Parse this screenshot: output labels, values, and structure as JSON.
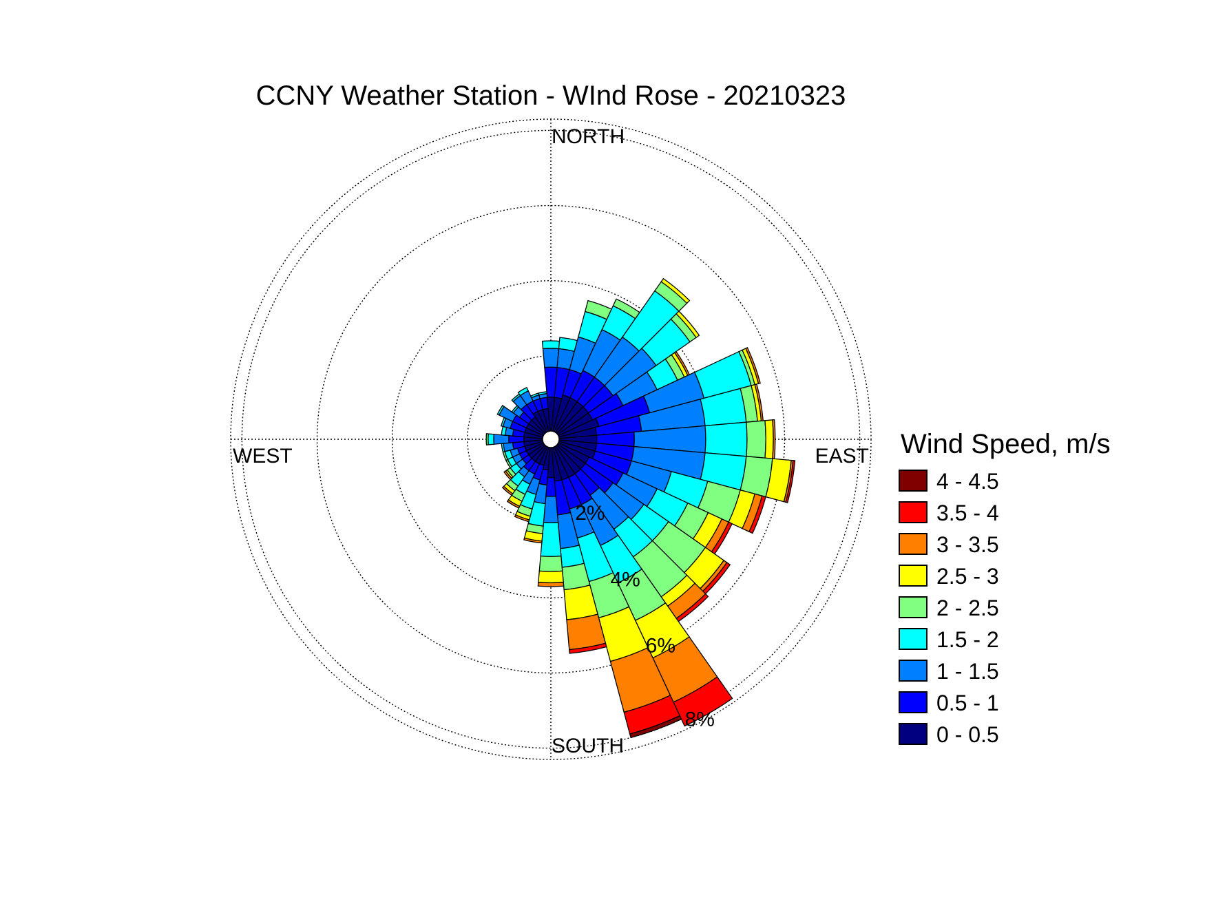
{
  "chart_data": {
    "type": "windrose",
    "title": "CCNY Weather Station - WInd Rose - 20210323",
    "compass": {
      "north": "NORTH",
      "south": "SOUTH",
      "east": "EAST",
      "west": "WEST"
    },
    "ring_values": [
      2,
      4,
      6,
      8
    ],
    "ring_labels": [
      "2%",
      "4%",
      "6%",
      "8%"
    ],
    "radial_max": 8.3,
    "sector_width_deg": 10,
    "legend_title": "Wind Speed, m/s",
    "bins": [
      {
        "label": "0 - 0.5",
        "color": "#000080"
      },
      {
        "label": "0.5 - 1",
        "color": "#0000FF"
      },
      {
        "label": "1 - 1.5",
        "color": "#0080FF"
      },
      {
        "label": "1.5 - 2",
        "color": "#00FFFF"
      },
      {
        "label": "2 - 2.5",
        "color": "#80FF80"
      },
      {
        "label": "2.5 - 3",
        "color": "#FFFF00"
      },
      {
        "label": "3 - 3.5",
        "color": "#FF8000"
      },
      {
        "label": "3.5 - 4",
        "color": "#FF0000"
      },
      {
        "label": "4 - 4.5",
        "color": "#800000"
      }
    ],
    "sectors": [
      {
        "dir": 0,
        "cum": [
          0.9,
          1.7,
          2.2,
          2.4
        ]
      },
      {
        "dir": 10,
        "cum": [
          0.9,
          1.7,
          2.2,
          2.5
        ]
      },
      {
        "dir": 20,
        "cum": [
          1.0,
          1.7,
          2.6,
          3.3,
          3.6
        ]
      },
      {
        "dir": 30,
        "cum": [
          1.0,
          1.8,
          3.0,
          3.7,
          3.9
        ]
      },
      {
        "dir": 40,
        "cum": [
          1.0,
          1.8,
          3.1,
          4.6,
          4.9,
          5.0
        ]
      },
      {
        "dir": 50,
        "cum": [
          1.0,
          1.8,
          3.2,
          4.3,
          4.5,
          4.6
        ]
      },
      {
        "dir": 60,
        "cum": [
          1.0,
          1.9,
          2.9,
          3.5,
          3.7,
          3.8,
          3.85
        ]
      },
      {
        "dir": 70,
        "cum": [
          1.1,
          2.5,
          4.0,
          5.3,
          5.4,
          5.5,
          5.55
        ]
      },
      {
        "dir": 80,
        "cum": [
          1.0,
          2.2,
          3.9,
          5.0,
          5.3,
          5.4,
          5.45
        ]
      },
      {
        "dir": 90,
        "cum": [
          1.0,
          2.0,
          3.9,
          5.0,
          5.5,
          5.7,
          5.75
        ]
      },
      {
        "dir": 100,
        "cum": [
          1.0,
          2.0,
          3.9,
          5.0,
          5.7,
          6.2,
          6.25,
          6.3
        ]
      },
      {
        "dir": 110,
        "cum": [
          1.0,
          2.0,
          3.1,
          4.1,
          5.0,
          5.4,
          5.6,
          5.7
        ]
      },
      {
        "dir": 120,
        "cum": [
          0.9,
          1.9,
          2.9,
          3.8,
          4.4,
          4.8,
          5.0,
          5.1
        ]
      },
      {
        "dir": 130,
        "cum": [
          0.9,
          1.8,
          2.8,
          3.6,
          4.8,
          5.4,
          5.5,
          5.6
        ]
      },
      {
        "dir": 140,
        "cum": [
          0.9,
          1.6,
          2.7,
          3.6,
          4.9,
          5.2,
          5.6,
          5.7
        ]
      },
      {
        "dir": 150,
        "cum": [
          0.9,
          1.7,
          2.9,
          4.0,
          5.1,
          6.2,
          7.5,
          8.2
        ]
      },
      {
        "dir": 160,
        "cum": [
          0.9,
          1.7,
          2.5,
          3.7,
          4.7,
          5.9,
          7.3,
          7.9,
          8.0
        ]
      },
      {
        "dir": 170,
        "cum": [
          0.9,
          1.8,
          2.7,
          3.2,
          3.8,
          4.6,
          5.4,
          5.5
        ]
      },
      {
        "dir": 180,
        "cum": [
          0.8,
          1.3,
          2.0,
          2.9,
          3.3,
          3.6,
          3.7
        ]
      },
      {
        "dir": 190,
        "cum": [
          0.6,
          1.0,
          1.5,
          2.1,
          2.3,
          2.5,
          2.55
        ]
      },
      {
        "dir": 200,
        "cum": [
          0.5,
          0.9,
          1.3,
          1.7,
          1.9,
          2.0,
          2.05
        ]
      },
      {
        "dir": 210,
        "cum": [
          0.5,
          0.8,
          1.1,
          1.4,
          1.6,
          1.75,
          1.8
        ]
      },
      {
        "dir": 220,
        "cum": [
          0.5,
          0.8,
          1.0,
          1.3,
          1.45,
          1.55,
          1.6
        ]
      },
      {
        "dir": 230,
        "cum": [
          0.5,
          0.7,
          0.9,
          1.1,
          1.2,
          1.25,
          1.3
        ]
      },
      {
        "dir": 240,
        "cum": [
          0.5,
          0.7,
          0.9,
          1.05,
          1.1
        ]
      },
      {
        "dir": 250,
        "cum": [
          0.5,
          0.7,
          0.9,
          1.05,
          1.1
        ]
      },
      {
        "dir": 260,
        "cum": [
          0.5,
          0.8,
          1.05,
          1.1
        ]
      },
      {
        "dir": 270,
        "cum": [
          0.5,
          0.9,
          1.3,
          1.45,
          1.5
        ]
      },
      {
        "dir": 280,
        "cum": [
          0.5,
          0.8,
          1.0,
          1.1
        ]
      },
      {
        "dir": 290,
        "cum": [
          0.5,
          0.9,
          1.1,
          1.15
        ]
      },
      {
        "dir": 300,
        "cum": [
          0.5,
          0.9,
          1.3,
          1.35
        ]
      },
      {
        "dir": 310,
        "cum": [
          0.5,
          0.8,
          1.0,
          1.05
        ]
      },
      {
        "dir": 320,
        "cum": [
          0.5,
          0.9,
          1.2,
          1.25
        ]
      },
      {
        "dir": 330,
        "cum": [
          0.6,
          0.9,
          1.2,
          1.3
        ]
      },
      {
        "dir": 340,
        "cum": [
          0.6,
          0.9,
          1.0,
          1.05
        ]
      },
      {
        "dir": 350,
        "cum": [
          0.6,
          0.9,
          1.0,
          1.05
        ]
      }
    ]
  }
}
